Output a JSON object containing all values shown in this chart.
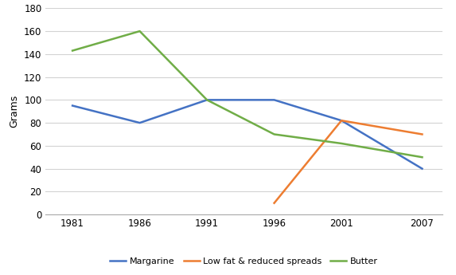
{
  "years": [
    1981,
    1986,
    1991,
    1996,
    2001,
    2007
  ],
  "margarine": [
    95,
    80,
    100,
    100,
    82,
    40
  ],
  "low_fat_years": [
    1996,
    2001,
    2007
  ],
  "low_fat": [
    10,
    82,
    70
  ],
  "butter": [
    143,
    160,
    100,
    70,
    62,
    50
  ],
  "margarine_color": "#4472C4",
  "low_fat_color": "#ED7D31",
  "butter_color": "#70AD47",
  "ylabel": "Grams",
  "ylim_min": 0,
  "ylim_max": 180,
  "yticks": [
    0,
    20,
    40,
    60,
    80,
    100,
    120,
    140,
    160,
    180
  ],
  "xtick_labels": [
    "1981",
    "1986",
    "1991",
    "1996",
    "2001",
    "2007"
  ],
  "legend_labels": [
    "Margarine",
    "Low fat & reduced spreads",
    "Butter"
  ],
  "background_color": "#ffffff",
  "grid_color": "#d3d3d3"
}
